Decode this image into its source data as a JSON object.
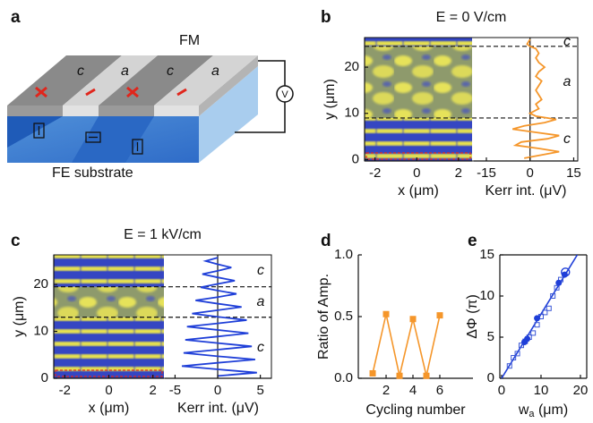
{
  "schematic": {
    "panel": "a",
    "layer_top": "FM",
    "domains": [
      "c",
      "a",
      "c",
      "a"
    ],
    "substrate": "FE substrate",
    "meter": "V"
  },
  "chart_data": [
    {
      "type": "kerr-map",
      "panel": "b",
      "title": "E = 0 V/cm",
      "xlabel": "x (μm)",
      "ylabel": "y (μm)",
      "xlim": [
        -2.5,
        2.65
      ],
      "xticks": [
        -2,
        0,
        2
      ],
      "ylim": [
        -0.3,
        26.4
      ],
      "yticks": [
        0,
        10,
        20
      ],
      "boundaries": [
        9,
        24.5
      ],
      "regions": [
        "c",
        "a",
        "c"
      ],
      "profile": {
        "xlabel": "Kerr int. (μV)",
        "xlim": [
          -19.3,
          16.4
        ],
        "xticks": [
          -15,
          0,
          15
        ],
        "color": "#f5962a",
        "y": [
          0.3,
          1,
          1.7,
          2.4,
          3.1,
          3.8,
          4.5,
          5.2,
          5.9,
          6.6,
          7.3,
          8,
          8.7,
          9.4,
          10,
          11,
          12,
          13,
          14,
          15,
          16,
          17,
          18,
          19,
          20,
          21,
          22,
          23,
          24,
          24.5,
          25,
          26
        ],
        "values": [
          -2,
          4,
          10,
          3,
          -5,
          -3,
          6,
          10,
          2,
          -6,
          -2,
          5,
          9,
          2,
          0,
          3,
          2,
          4,
          3,
          2,
          3,
          4,
          2,
          3,
          5,
          3,
          2,
          3,
          2,
          0,
          -1,
          0
        ]
      }
    },
    {
      "type": "kerr-map",
      "panel": "c",
      "title": "E = 1 kV/cm",
      "xlabel": "x (μm)",
      "ylabel": "y (μm)",
      "xlim": [
        -2.5,
        2.5
      ],
      "xticks": [
        -2,
        0,
        2
      ],
      "ylim": [
        0,
        26.3
      ],
      "yticks": [
        0,
        10,
        20
      ],
      "boundaries": [
        13,
        19.5
      ],
      "regions": [
        "c",
        "a",
        "c"
      ],
      "profile": {
        "xlabel": "Kerr int. (μV)",
        "xlim": [
          -6.2,
          6.3
        ],
        "xticks": [
          -5,
          0,
          5
        ],
        "color": "#1f3fd8",
        "y": [
          0.5,
          1.2,
          1.9,
          2.6,
          3.3,
          4.0,
          4.7,
          5.4,
          6.1,
          6.8,
          7.5,
          8.2,
          8.9,
          9.6,
          10.3,
          11.0,
          11.7,
          12.4,
          13.1,
          13.8,
          14.5,
          15.2,
          15.9,
          16.6,
          17.3,
          18.0,
          18.7,
          19.4,
          20.1,
          20.8,
          21.5,
          22.2,
          22.9,
          23.6,
          24.3,
          25.0,
          25.7
        ],
        "values": [
          0,
          4.6,
          0,
          -4.2,
          0,
          4.4,
          0,
          -4,
          0,
          4,
          0,
          -3.8,
          0,
          3.6,
          0,
          -3.6,
          0,
          3.4,
          0,
          -3,
          0,
          2.8,
          0,
          -2.6,
          0,
          2.2,
          0,
          -2,
          0,
          2,
          0,
          -1.8,
          0,
          1.6,
          0,
          -1.4,
          0
        ]
      }
    },
    {
      "type": "line",
      "panel": "d",
      "xlabel": "Cycling number",
      "ylabel": "Ratio of Amp.",
      "color": "#f5962a",
      "x": [
        1,
        2,
        3,
        4,
        5,
        6
      ],
      "values": [
        0.04,
        0.52,
        0.02,
        0.48,
        0.02,
        0.51
      ],
      "xlim": [
        -0.07,
        8.47
      ],
      "xticks": [
        2,
        4,
        6
      ],
      "ylim": [
        0,
        1
      ],
      "yticks": [
        {
          "value": 0,
          "label": "0.0"
        },
        0.5,
        {
          "value": 1,
          "label": "1.0"
        }
      ]
    },
    {
      "type": "scatter",
      "panel": "e",
      "xlabel": "w",
      "xlabel_sub": "a",
      "xlabel_unit": " (μm)",
      "ylabel": "ΔΦ (π)",
      "xlim": [
        -0.45,
        21.6
      ],
      "xticks": [
        0,
        10,
        20
      ],
      "ylim": [
        0,
        15
      ],
      "yticks": [
        0,
        5,
        10,
        15
      ],
      "series": [
        {
          "marker": "line",
          "color": "#1f3fd8",
          "x": [
            0,
            19.2
          ],
          "values": [
            0,
            15
          ]
        },
        {
          "marker": "open-square",
          "color": "#3b57d6",
          "x": [
            2,
            3,
            4,
            5,
            6,
            7,
            8,
            9,
            10,
            11,
            12,
            13,
            14,
            15
          ],
          "values": [
            1.5,
            2.5,
            3,
            4,
            4.5,
            5,
            5.5,
            6.5,
            7.5,
            8,
            8.5,
            10,
            11,
            12
          ]
        },
        {
          "marker": "filled-circle",
          "color": "#1f3fd8",
          "x": [
            5.8,
            6.5,
            9,
            14.5,
            16
          ],
          "values": [
            4.4,
            4.8,
            7.3,
            11.6,
            12.6
          ]
        },
        {
          "marker": "open-circle",
          "color": "#1f3fd8",
          "x": [
            16.2
          ],
          "values": [
            12.9
          ]
        }
      ]
    }
  ]
}
